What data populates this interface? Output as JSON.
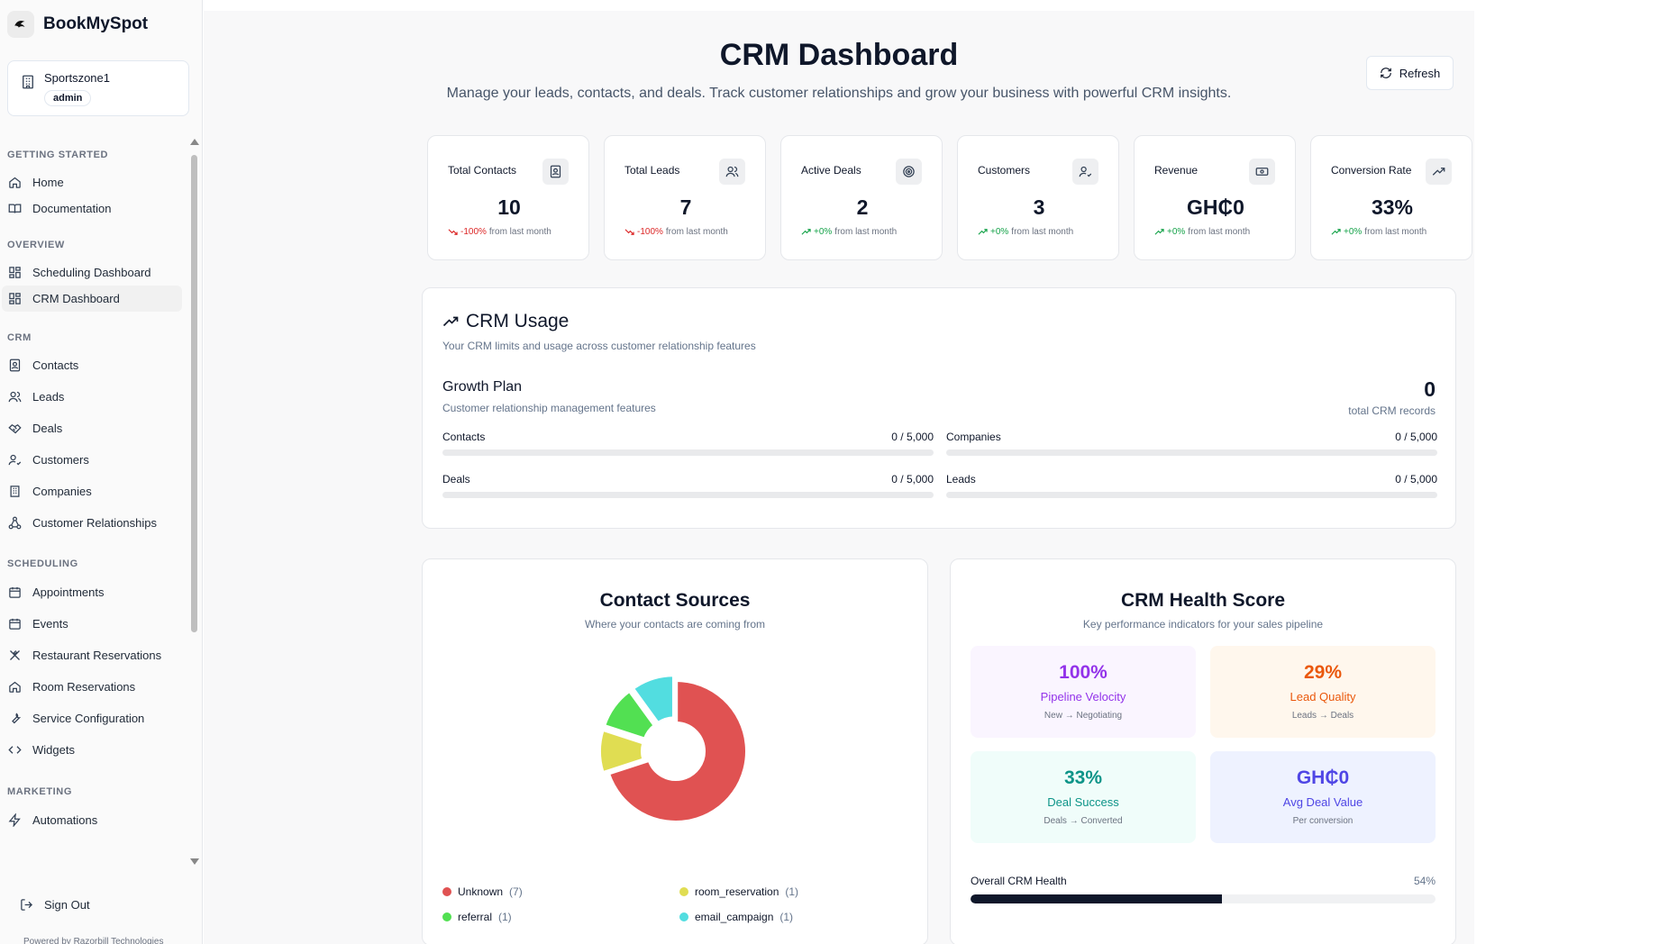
{
  "app": {
    "name": "BookMySpot"
  },
  "org": {
    "name": "Sportszone1",
    "role": "admin"
  },
  "sidebar": {
    "sections": [
      {
        "label": "GETTING STARTED",
        "items": [
          {
            "label": "Home",
            "icon": "home-icon"
          },
          {
            "label": "Documentation",
            "icon": "book-icon"
          }
        ]
      },
      {
        "label": "OVERVIEW",
        "items": [
          {
            "label": "Scheduling Dashboard",
            "icon": "dashboard-icon"
          },
          {
            "label": "CRM Dashboard",
            "icon": "dashboard-icon",
            "active": true
          }
        ]
      },
      {
        "label": "CRM",
        "items": [
          {
            "label": "Contacts",
            "icon": "contact-card-icon"
          },
          {
            "label": "Leads",
            "icon": "users-icon"
          },
          {
            "label": "Deals",
            "icon": "handshake-icon"
          },
          {
            "label": "Customers",
            "icon": "user-check-icon"
          },
          {
            "label": "Companies",
            "icon": "building-icon"
          },
          {
            "label": "Customer Relationships",
            "icon": "network-icon"
          }
        ]
      },
      {
        "label": "SCHEDULING",
        "items": [
          {
            "label": "Appointments",
            "icon": "calendar-icon"
          },
          {
            "label": "Events",
            "icon": "calendar-icon"
          },
          {
            "label": "Restaurant Reservations",
            "icon": "utensils-icon"
          },
          {
            "label": "Room Reservations",
            "icon": "home-icon"
          },
          {
            "label": "Service Configuration",
            "icon": "wrench-icon"
          },
          {
            "label": "Widgets",
            "icon": "code-icon"
          }
        ]
      },
      {
        "label": "MARKETING",
        "items": [
          {
            "label": "Automations",
            "icon": "zap-icon"
          }
        ]
      }
    ],
    "sign_out": "Sign Out",
    "powered_by": "Powered by Razorbill Technologies"
  },
  "header": {
    "title": "CRM Dashboard",
    "subtitle": "Manage your leads, contacts, and deals. Track customer relationships and grow your business with powerful CRM insights.",
    "refresh_label": "Refresh"
  },
  "stats": [
    {
      "label": "Total Contacts",
      "value": "10",
      "change": "-100%",
      "suffix": "from last month",
      "trend": "down",
      "icon": "contact-card-icon"
    },
    {
      "label": "Total Leads",
      "value": "7",
      "change": "-100%",
      "suffix": "from last month",
      "trend": "down",
      "icon": "users-icon"
    },
    {
      "label": "Active Deals",
      "value": "2",
      "change": "+0%",
      "suffix": "from last month",
      "trend": "up",
      "icon": "target-icon"
    },
    {
      "label": "Customers",
      "value": "3",
      "change": "+0%",
      "suffix": "from last month",
      "trend": "up",
      "icon": "user-check-icon"
    },
    {
      "label": "Revenue",
      "value": "GH₵0",
      "change": "+0%",
      "suffix": "from last month",
      "trend": "up",
      "icon": "banknote-icon"
    },
    {
      "label": "Conversion Rate",
      "value": "33%",
      "change": "+0%",
      "suffix": "from last month",
      "trend": "up",
      "icon": "trending-up-icon"
    }
  ],
  "usage": {
    "title": "CRM Usage",
    "subtitle": "Your CRM limits and usage across customer relationship features",
    "plan_name": "Growth Plan",
    "plan_sub": "Customer relationship management features",
    "total": "0",
    "total_label": "total CRM records",
    "meters": [
      {
        "label": "Contacts",
        "value": "0 / 5,000",
        "fraction": 0
      },
      {
        "label": "Companies",
        "value": "0 / 5,000",
        "fraction": 0
      },
      {
        "label": "Deals",
        "value": "0 / 5,000",
        "fraction": 0
      },
      {
        "label": "Leads",
        "value": "0 / 5,000",
        "fraction": 0
      }
    ]
  },
  "sources": {
    "title": "Contact Sources",
    "subtitle": "Where your contacts are coming from",
    "legend": [
      {
        "label": "Unknown",
        "count": "(7)",
        "color": "#e05252"
      },
      {
        "label": "room_reservation",
        "count": "(1)",
        "color": "#e0dd52"
      },
      {
        "label": "referral",
        "count": "(1)",
        "color": "#52e052"
      },
      {
        "label": "email_campaign",
        "count": "(1)",
        "color": "#52dde0"
      }
    ]
  },
  "chart_data": {
    "type": "pie",
    "title": "Contact Sources",
    "categories": [
      "Unknown",
      "room_reservation",
      "referral",
      "email_campaign"
    ],
    "values": [
      7,
      1,
      1,
      1
    ],
    "colors": [
      "#e05252",
      "#e0dd52",
      "#52e052",
      "#52dde0"
    ]
  },
  "health": {
    "title": "CRM Health Score",
    "subtitle": "Key performance indicators for your sales pipeline",
    "kpis": [
      {
        "value": "100%",
        "label": "Pipeline Velocity",
        "sub": "New → Negotiating",
        "bg": "#faf5ff",
        "color": "#9333ea"
      },
      {
        "value": "29%",
        "label": "Lead Quality",
        "sub": "Leads → Deals",
        "bg": "#fff7ed",
        "color": "#ea580c"
      },
      {
        "value": "33%",
        "label": "Deal Success",
        "sub": "Deals → Converted",
        "bg": "#f0fdfa",
        "color": "#0d9488"
      },
      {
        "value": "GH₵0",
        "label": "Avg Deal Value",
        "sub": "Per conversion",
        "bg": "#eef2ff",
        "color": "#4f46e5"
      }
    ],
    "overall_label": "Overall CRM Health",
    "overall_value": "54%",
    "overall_fraction": 0.54
  }
}
